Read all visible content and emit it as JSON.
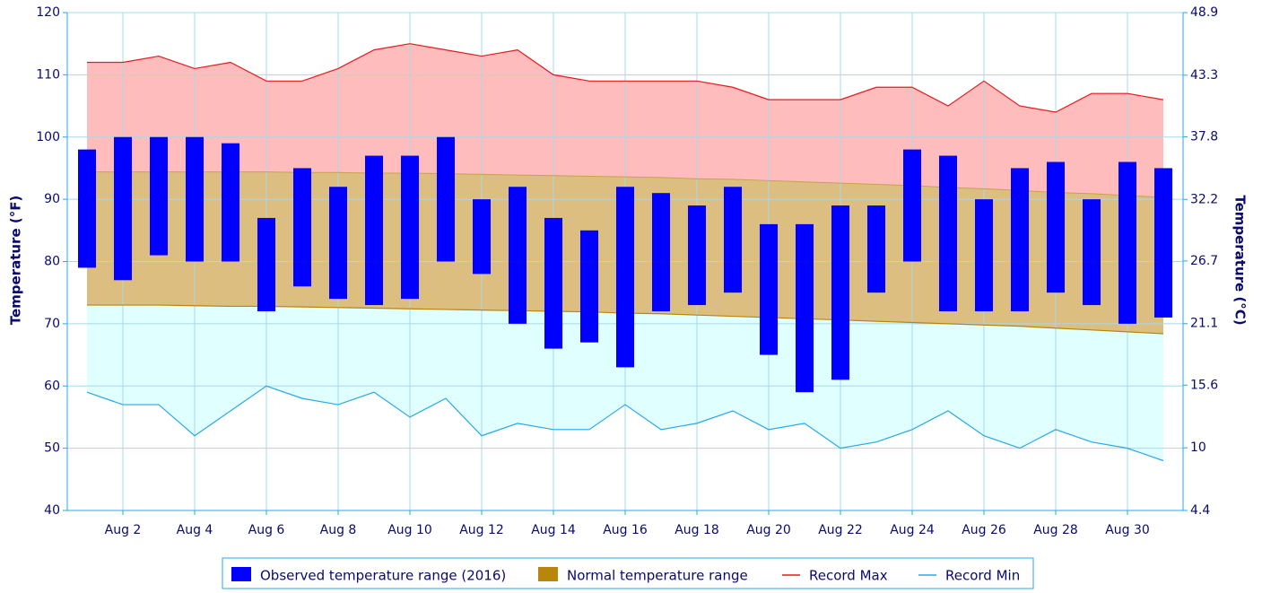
{
  "chart_data": {
    "type": "temperature-range",
    "y_label": "Temperature (°F)",
    "y2_label": "Temperature (°C)",
    "x": [
      1,
      2,
      3,
      4,
      5,
      6,
      7,
      8,
      9,
      10,
      11,
      12,
      13,
      14,
      15,
      16,
      17,
      18,
      19,
      20,
      21,
      22,
      23,
      24,
      25,
      26,
      27,
      28,
      29,
      30,
      31
    ],
    "xlim": [
      0.45,
      31.55
    ],
    "xticks": [
      {
        "value": 2,
        "label": "Aug 2"
      },
      {
        "value": 4,
        "label": "Aug 4"
      },
      {
        "value": 6,
        "label": "Aug 6"
      },
      {
        "value": 8,
        "label": "Aug 8"
      },
      {
        "value": 10,
        "label": "Aug 10"
      },
      {
        "value": 12,
        "label": "Aug 12"
      },
      {
        "value": 14,
        "label": "Aug 14"
      },
      {
        "value": 16,
        "label": "Aug 16"
      },
      {
        "value": 18,
        "label": "Aug 18"
      },
      {
        "value": 20,
        "label": "Aug 20"
      },
      {
        "value": 22,
        "label": "Aug 22"
      },
      {
        "value": 24,
        "label": "Aug 24"
      },
      {
        "value": 26,
        "label": "Aug 26"
      },
      {
        "value": 28,
        "label": "Aug 28"
      },
      {
        "value": 30,
        "label": "Aug 30"
      }
    ],
    "ylim": [
      40,
      120
    ],
    "yticks": [
      40,
      50,
      60,
      70,
      80,
      90,
      100,
      110,
      120
    ],
    "y2lim": [
      4.4,
      48.9
    ],
    "y2ticks": [
      4.4,
      10,
      15.6,
      21.1,
      26.7,
      32.2,
      37.8,
      43.3,
      48.9
    ],
    "grid": true,
    "series": [
      {
        "name": "Observed temperature range (2016)",
        "color": "#0000ff",
        "low": [
          79,
          77,
          81,
          80,
          80,
          72,
          76,
          74,
          73,
          74,
          80,
          78,
          70,
          66,
          67,
          63,
          72,
          73,
          75,
          65,
          59,
          61,
          75,
          80,
          72,
          72,
          72,
          75,
          73,
          70,
          71
        ],
        "high": [
          98,
          100,
          100,
          100,
          99,
          87,
          95,
          92,
          97,
          97,
          100,
          90,
          92,
          87,
          85,
          92,
          91,
          89,
          92,
          86,
          86,
          89,
          89,
          98,
          97,
          90,
          95,
          96,
          90,
          96,
          95
        ]
      },
      {
        "name": "Normal temperature range",
        "color": "#b8860b",
        "low": [
          73.0,
          73.0,
          73.0,
          72.9,
          72.8,
          72.8,
          72.7,
          72.6,
          72.5,
          72.4,
          72.3,
          72.2,
          72.1,
          72.0,
          71.9,
          71.7,
          71.6,
          71.4,
          71.2,
          71.0,
          70.8,
          70.6,
          70.4,
          70.2,
          70.0,
          69.8,
          69.6,
          69.3,
          69.0,
          68.7,
          68.4
        ],
        "high": [
          94.4,
          94.4,
          94.4,
          94.4,
          94.4,
          94.4,
          94.3,
          94.3,
          94.2,
          94.2,
          94.1,
          94.0,
          93.9,
          93.8,
          93.7,
          93.6,
          93.5,
          93.3,
          93.2,
          93.0,
          92.8,
          92.6,
          92.4,
          92.2,
          91.9,
          91.7,
          91.4,
          91.1,
          90.9,
          90.6,
          90.3
        ]
      },
      {
        "name": "Record Max",
        "color": "#e8191c",
        "values": [
          112,
          112,
          113,
          111,
          112,
          109,
          109,
          111,
          114,
          115,
          114,
          113,
          114,
          110,
          109,
          109,
          109,
          109,
          108,
          106,
          106,
          106,
          108,
          108,
          105,
          109,
          105,
          104,
          107,
          107,
          106
        ]
      },
      {
        "name": "Record Min",
        "color": "#29a9e6",
        "values": [
          59,
          57,
          57,
          52,
          56,
          60,
          58,
          57,
          59,
          55,
          58,
          52,
          54,
          53,
          53,
          57,
          53,
          54,
          56,
          53,
          54,
          50,
          51,
          53,
          56,
          52,
          50,
          53,
          51,
          50,
          48
        ]
      }
    ]
  }
}
